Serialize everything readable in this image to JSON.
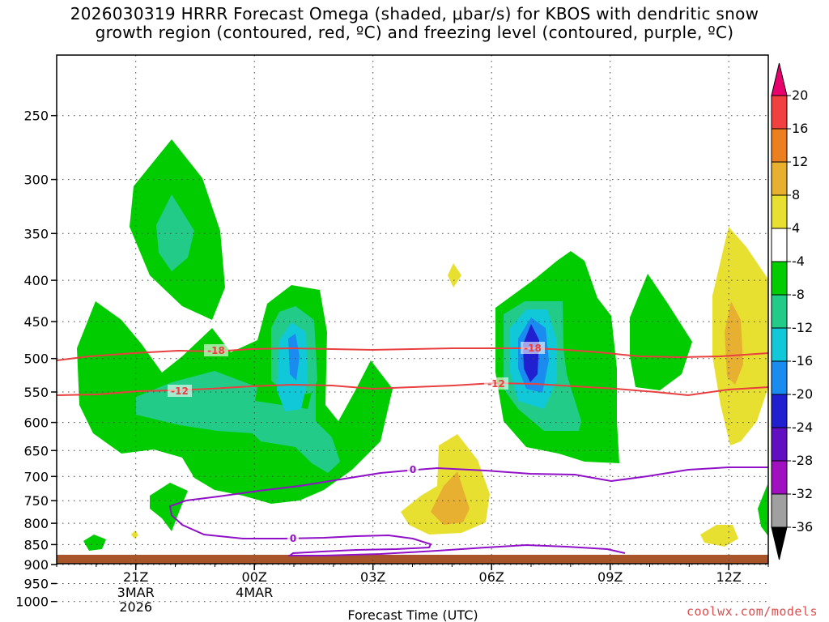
{
  "title": {
    "line1": "2026030319 HRRR Forecast Omega (shaded, μbar/s) for KBOS with dendritic snow",
    "line2": "growth region (contoured, red, ºC) and freezing level (contoured, purple, ºC)"
  },
  "watermark": "coolwx.com/models",
  "chart_data": {
    "type": "time-height cross section",
    "title": "2026030319 HRRR Forecast Omega (shaded, μbar/s) for KBOS with dendritic snow growth region (contoured, red, ºC) and freezing level (contoured, purple, ºC)",
    "xlabel": "Forecast Time (UTC)",
    "ylabel": "",
    "x_ticks": [
      {
        "label": "21Z",
        "sub": [
          "3MAR",
          "2026"
        ],
        "hour": 2
      },
      {
        "label": "00Z",
        "sub": [
          "4MAR"
        ],
        "hour": 5
      },
      {
        "label": "03Z",
        "sub": [],
        "hour": 8
      },
      {
        "label": "06Z",
        "sub": [],
        "hour": 11
      },
      {
        "label": "09Z",
        "sub": [],
        "hour": 14
      },
      {
        "label": "12Z",
        "sub": [],
        "hour": 17
      }
    ],
    "xlim_hours": [
      0,
      18
    ],
    "y_ticks": [
      250,
      300,
      350,
      400,
      450,
      500,
      550,
      600,
      650,
      700,
      750,
      800,
      850,
      900,
      950,
      1000
    ],
    "ylim_hpa": [
      1030,
      200
    ],
    "colorbar": {
      "labels": [
        "20",
        "16",
        "12",
        "8",
        "4",
        "-4",
        "-8",
        "-12",
        "-16",
        "-20",
        "-24",
        "-28",
        "-32",
        "-36"
      ],
      "colors": [
        "#e8006c",
        "#f04040",
        "#ec8020",
        "#e8b030",
        "#e8e030",
        "#ffffff",
        "#00cc00",
        "#22cc88",
        "#10c8d8",
        "#1a8cf0",
        "#2020d0",
        "#6010c0",
        "#a010c0",
        "#a0a0a0",
        "#000000"
      ]
    },
    "omega_areas": [
      {
        "name": "upward-motion area west",
        "level": "-4 to -8",
        "color": "#00cc00"
      },
      {
        "name": "upward-motion core west",
        "level": "-8 to -12",
        "color": "#22cc88"
      },
      {
        "name": "upward-motion core 01Z",
        "level": "-12 to -16",
        "color": "#10c8d8"
      },
      {
        "name": "upward-motion area 07Z",
        "level": "-4 to -8",
        "color": "#00cc00"
      },
      {
        "name": "upward-motion core 07Z",
        "level": "-20 to -24",
        "color": "#2020d0"
      },
      {
        "name": "sinking area 05Z",
        "level": "4 to 8",
        "color": "#e8e030"
      },
      {
        "name": "sinking area 12Z",
        "level": "8 to 12",
        "color": "#e8b030"
      }
    ],
    "isotherms_dgz": [
      {
        "value": -18,
        "label": "-18",
        "color": "#e84040"
      },
      {
        "value": -12,
        "label": "-12",
        "color": "#e84040"
      }
    ],
    "freezing_level": [
      {
        "value": 0,
        "label": "0",
        "color": "#9010c8"
      }
    ]
  }
}
